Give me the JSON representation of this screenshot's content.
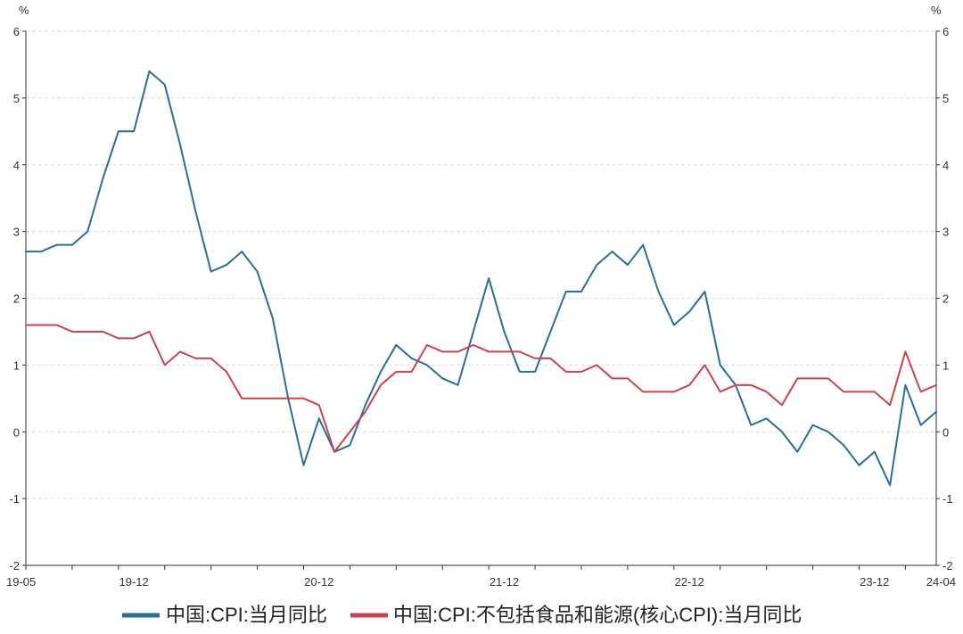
{
  "chart_data": {
    "type": "line",
    "title": "",
    "ylabel_left": "%",
    "ylabel_right": "%",
    "ylim": [
      -2,
      6
    ],
    "yticks": [
      -2,
      -1,
      0,
      1,
      2,
      3,
      4,
      5,
      6
    ],
    "grid": true,
    "legend_position": "bottom",
    "x_start": "19-05",
    "x_end": "24-04",
    "x_tick_labels": [
      "19-05",
      "19-12",
      "20-12",
      "21-12",
      "22-12",
      "23-12",
      "24-04"
    ],
    "series": [
      {
        "name": "中国:CPI:当月同比",
        "color": "#2a6f97",
        "values": [
          2.7,
          2.7,
          2.8,
          2.8,
          3.0,
          3.8,
          4.5,
          4.5,
          5.4,
          5.2,
          4.3,
          3.3,
          2.4,
          2.5,
          2.7,
          2.4,
          1.7,
          0.5,
          -0.5,
          0.2,
          -0.3,
          -0.2,
          0.4,
          0.9,
          1.3,
          1.1,
          1.0,
          0.8,
          0.7,
          1.5,
          2.3,
          1.5,
          0.9,
          0.9,
          1.5,
          2.1,
          2.1,
          2.5,
          2.7,
          2.5,
          2.8,
          2.1,
          1.6,
          1.8,
          2.1,
          1.0,
          0.7,
          0.1,
          0.2,
          0.0,
          -0.3,
          0.1,
          0.0,
          -0.2,
          -0.5,
          -0.3,
          -0.8,
          0.7,
          0.1,
          0.3
        ]
      },
      {
        "name": "中国:CPI:不包括食品和能源(核心CPI):当月同比",
        "color": "#c9444f",
        "values": [
          1.6,
          1.6,
          1.6,
          1.5,
          1.5,
          1.5,
          1.4,
          1.4,
          1.5,
          1.0,
          1.2,
          1.1,
          1.1,
          0.9,
          0.5,
          0.5,
          0.5,
          0.5,
          0.5,
          0.4,
          -0.3,
          0.0,
          0.3,
          0.7,
          0.9,
          0.9,
          1.3,
          1.2,
          1.2,
          1.3,
          1.2,
          1.2,
          1.2,
          1.1,
          1.1,
          0.9,
          0.9,
          1.0,
          0.8,
          0.8,
          0.6,
          0.6,
          0.6,
          0.7,
          1.0,
          0.6,
          0.7,
          0.7,
          0.6,
          0.4,
          0.8,
          0.8,
          0.8,
          0.6,
          0.6,
          0.6,
          0.4,
          1.2,
          0.6,
          0.7
        ]
      }
    ]
  }
}
